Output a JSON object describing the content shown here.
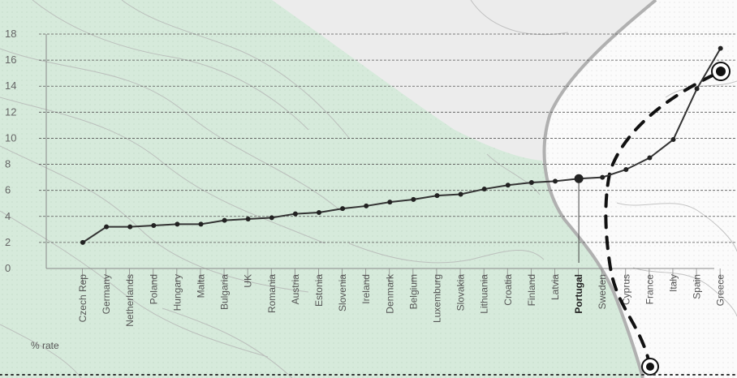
{
  "chart_data": {
    "type": "line",
    "ylabel": "% rate",
    "ylim": [
      0,
      18
    ],
    "yticks": [
      0,
      2,
      4,
      6,
      8,
      10,
      12,
      14,
      16,
      18
    ],
    "grid": true,
    "highlight": "Portugal",
    "categories": [
      "Czech Rep",
      "Germany",
      "Netherlands",
      "Poland",
      "Hungary",
      "Malta",
      "Bulgaria",
      "UK",
      "Romania",
      "Austria",
      "Estonia",
      "Slovenia",
      "Ireland",
      "Denmark",
      "Belgium",
      "Luxemburg",
      "Slovakia",
      "Lithuania",
      "Croatia",
      "Finland",
      "Latvia",
      "Portugal",
      "Sweden",
      "Cyprus",
      "France",
      "Italy",
      "Spain",
      "Greece"
    ],
    "series": [
      {
        "values": [
          2.0,
          3.2,
          3.2,
          3.3,
          3.4,
          3.4,
          3.7,
          3.8,
          3.9,
          4.2,
          4.3,
          4.6,
          4.8,
          5.1,
          5.3,
          5.6,
          5.7,
          6.1,
          6.4,
          6.6,
          6.7,
          6.9,
          7.0,
          7.6,
          8.5,
          9.9,
          13.8,
          16.9
        ],
        "color": "#333333"
      }
    ],
    "colors": {
      "land_green": "#d6eadb",
      "land_grey": "#e9e9e9",
      "land_white": "#fbfbfb",
      "contour": "#b5b5b5",
      "border": "#b0b0b0",
      "line": "#333333",
      "route": "#111111"
    }
  }
}
